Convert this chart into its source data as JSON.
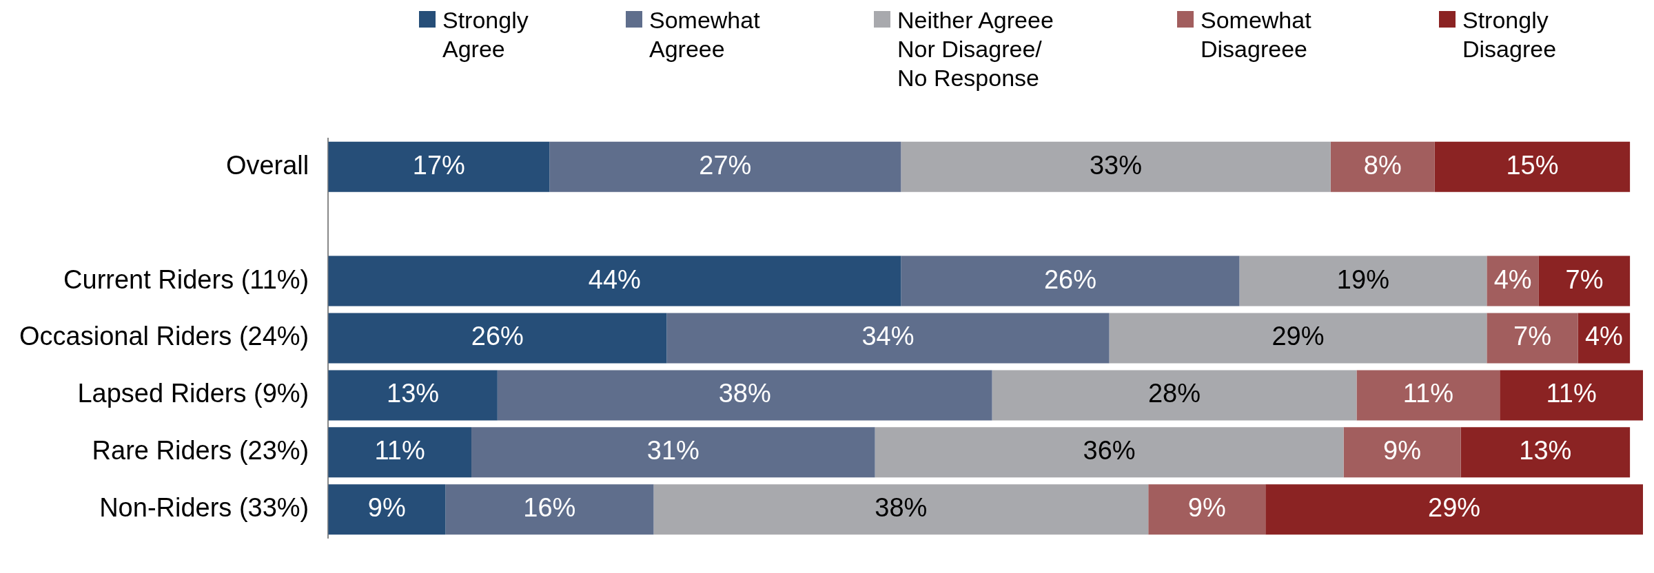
{
  "chart_data": {
    "type": "bar",
    "orientation": "horizontal",
    "stacked": true,
    "legend": "top",
    "categories": [
      "Overall",
      null,
      "Current Riders (11%)",
      "Occasional Riders (24%)",
      "Lapsed Riders (9%)",
      "Rare Riders (23%)",
      "Non-Riders (33%)"
    ],
    "series": [
      {
        "name": "Strongly Agree",
        "color": "#264e78",
        "values": [
          17,
          null,
          44,
          26,
          13,
          11,
          9
        ],
        "value_labels": [
          "17%",
          null,
          "44%",
          "26%",
          "13%",
          "11%",
          "9%"
        ]
      },
      {
        "name": "Somewhat Agreee",
        "color": "#5f6e8c",
        "values": [
          27,
          null,
          26,
          34,
          38,
          31,
          16
        ],
        "value_labels": [
          "27%",
          null,
          "26%",
          "34%",
          "38%",
          "31%",
          "16%"
        ]
      },
      {
        "name": "Neither Agreee Nor Disagree/ No Response",
        "color": "#a8a9ad",
        "values": [
          33,
          null,
          19,
          29,
          28,
          36,
          38
        ],
        "value_labels": [
          "33%",
          null,
          "19%",
          "29%",
          "28%",
          "36%",
          "38%"
        ]
      },
      {
        "name": "Somewhat Disagreee",
        "color": "#a25e5e",
        "values": [
          8,
          null,
          4,
          7,
          11,
          9,
          9
        ],
        "value_labels": [
          "8%",
          null,
          "4%",
          "7%",
          "11%",
          "9%",
          "9%"
        ]
      },
      {
        "name": "Strongly Disagree",
        "color": "#8b2323",
        "values": [
          15,
          null,
          7,
          4,
          11,
          13,
          29
        ],
        "value_labels": [
          "15%",
          null,
          "7%",
          "4%",
          "11%",
          "13%",
          "29%"
        ]
      }
    ]
  }
}
